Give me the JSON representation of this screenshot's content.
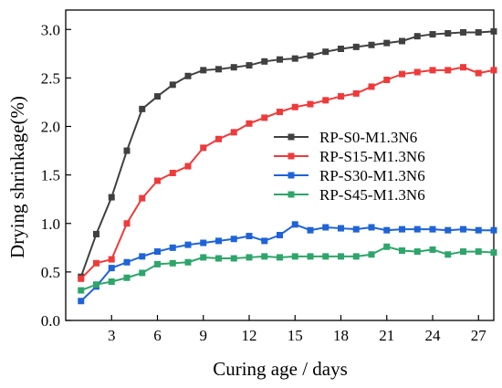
{
  "chart_data": {
    "type": "line",
    "xlabel": "Curing age / days",
    "ylabel": "Drying shrinkage(%)",
    "xlim": [
      0,
      28
    ],
    "ylim": [
      0,
      3.2
    ],
    "xticks": [
      3,
      6,
      9,
      12,
      15,
      18,
      21,
      24,
      27
    ],
    "yticks": [
      0.0,
      0.5,
      1.0,
      1.5,
      2.0,
      2.5,
      3.0
    ],
    "xtick_labels": [
      "3",
      "6",
      "9",
      "12",
      "15",
      "18",
      "21",
      "24",
      "27"
    ],
    "ytick_labels": [
      "0.0",
      "0.5",
      "1.0",
      "1.5",
      "2.0",
      "2.5",
      "3.0"
    ],
    "grid": false,
    "legend_position": "center-right",
    "x": [
      1,
      2,
      3,
      4,
      5,
      6,
      7,
      8,
      9,
      10,
      11,
      12,
      13,
      14,
      15,
      16,
      17,
      18,
      19,
      20,
      21,
      22,
      23,
      24,
      25,
      26,
      27,
      28
    ],
    "series": [
      {
        "name": "RP-S0-M1.3N6",
        "color": "#404040",
        "values": [
          0.45,
          0.89,
          1.27,
          1.75,
          2.18,
          2.31,
          2.43,
          2.52,
          2.58,
          2.59,
          2.61,
          2.63,
          2.67,
          2.69,
          2.7,
          2.73,
          2.77,
          2.8,
          2.82,
          2.84,
          2.86,
          2.88,
          2.93,
          2.95,
          2.96,
          2.97,
          2.97,
          2.98
        ]
      },
      {
        "name": "RP-S15-M1.3N6",
        "color": "#f03a3a",
        "values": [
          0.43,
          0.59,
          0.63,
          1.0,
          1.26,
          1.44,
          1.52,
          1.59,
          1.78,
          1.87,
          1.94,
          2.03,
          2.09,
          2.15,
          2.2,
          2.23,
          2.27,
          2.31,
          2.34,
          2.41,
          2.48,
          2.54,
          2.56,
          2.58,
          2.58,
          2.61,
          2.55,
          2.58
        ]
      },
      {
        "name": "RP-S30-M1.3N6",
        "color": "#1f63d8",
        "values": [
          0.2,
          0.35,
          0.54,
          0.6,
          0.66,
          0.71,
          0.75,
          0.78,
          0.8,
          0.82,
          0.84,
          0.87,
          0.82,
          0.88,
          0.99,
          0.93,
          0.96,
          0.95,
          0.94,
          0.96,
          0.93,
          0.94,
          0.94,
          0.94,
          0.93,
          0.94,
          0.93,
          0.93
        ]
      },
      {
        "name": "RP-S45-M1.3N6",
        "color": "#2ea56b",
        "values": [
          0.31,
          0.37,
          0.4,
          0.44,
          0.49,
          0.58,
          0.59,
          0.6,
          0.65,
          0.64,
          0.64,
          0.65,
          0.66,
          0.65,
          0.66,
          0.66,
          0.66,
          0.66,
          0.66,
          0.68,
          0.76,
          0.72,
          0.71,
          0.73,
          0.68,
          0.71,
          0.71,
          0.7
        ]
      }
    ]
  }
}
